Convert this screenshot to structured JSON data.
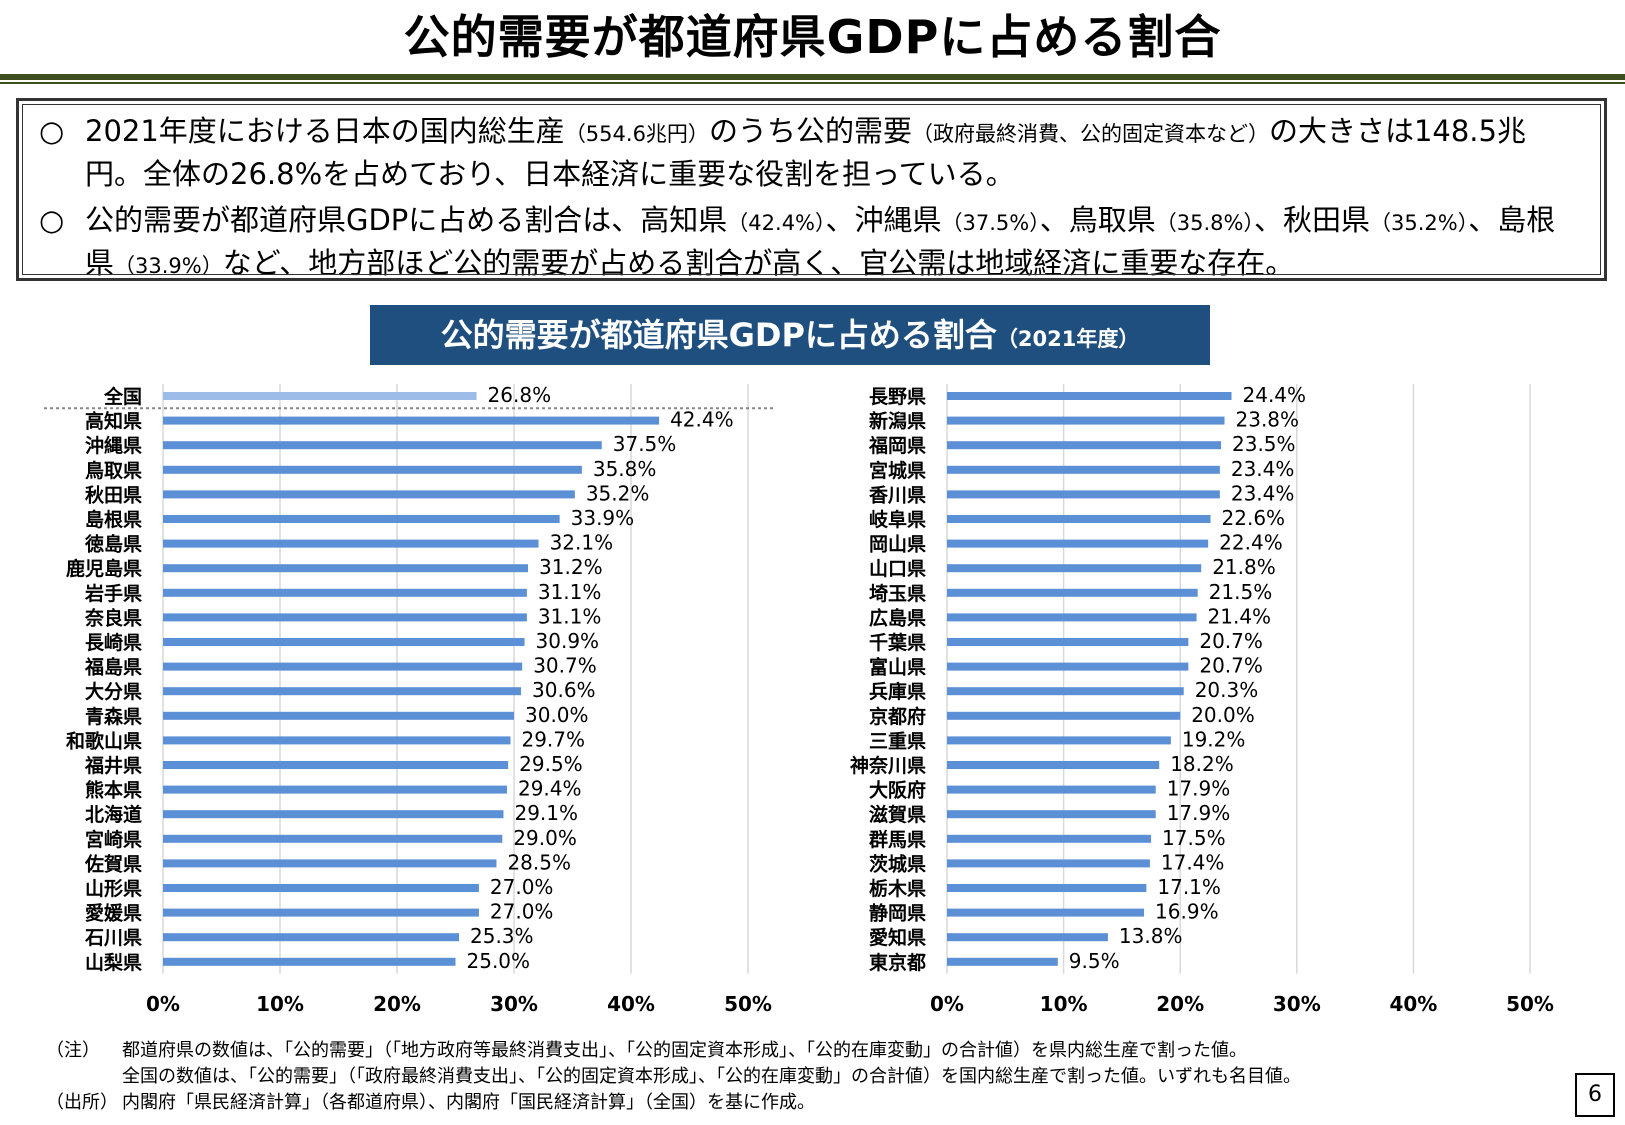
{
  "page": {
    "title": "公的需要が都道府県GDPに占める割合",
    "page_number": "6"
  },
  "summary": {
    "bullet_mark": "○",
    "bullet1": {
      "part1": "2021年度における日本の国内総生産",
      "part2": "（554.6兆円）",
      "part3": "のうち公的需要",
      "part4": "（政府最終消費、公的固定資本など）",
      "part5": "の大きさは148.5兆円。全体の26.8%を占めており、日本経済に重要な役割を担っている。"
    },
    "bullet2": {
      "part1": "公的需要が都道府県GDPに占める割合は、高知県",
      "part2": "（42.4%）",
      "part3": "、沖縄県",
      "part4": "（37.5%）",
      "part5": "、鳥取県",
      "part6": "（35.8%）",
      "part7": "、秋田県",
      "part8": "（35.2%）",
      "part9": "、島根県",
      "part10": "（33.9%）",
      "part11": "など、地方部ほど公的需要が占める割合が高く、官公需は地域経済に重要な存在。"
    }
  },
  "chart_title": {
    "main": "公的需要が都道府県GDPに占める割合",
    "sub": "（2021年度）"
  },
  "colors": {
    "bar": "#5b8fd6",
    "bar_national": "#9dbde8",
    "grid": "#d9d9d9",
    "title_bg": "#1f4f7f",
    "rule": "#3d4f1e"
  },
  "chart_data": [
    {
      "type": "bar",
      "orientation": "horizontal",
      "categories": [
        "全国",
        "高知県",
        "沖縄県",
        "鳥取県",
        "秋田県",
        "島根県",
        "徳島県",
        "鹿児島県",
        "岩手県",
        "奈良県",
        "長崎県",
        "福島県",
        "大分県",
        "青森県",
        "和歌山県",
        "福井県",
        "熊本県",
        "北海道",
        "宮崎県",
        "佐賀県",
        "山形県",
        "愛媛県",
        "石川県",
        "山梨県"
      ],
      "values": [
        26.8,
        42.4,
        37.5,
        35.8,
        35.2,
        33.9,
        32.1,
        31.2,
        31.1,
        31.1,
        30.9,
        30.7,
        30.6,
        30.0,
        29.7,
        29.5,
        29.4,
        29.1,
        29.0,
        28.5,
        27.0,
        27.0,
        25.3,
        25.0
      ],
      "value_labels": [
        "26.8%",
        "42.4%",
        "37.5%",
        "35.8%",
        "35.2%",
        "33.9%",
        "32.1%",
        "31.2%",
        "31.1%",
        "31.1%",
        "30.9%",
        "30.7%",
        "30.6%",
        "30.0%",
        "29.7%",
        "29.5%",
        "29.4%",
        "29.1%",
        "29.0%",
        "28.5%",
        "27.0%",
        "27.0%",
        "25.3%",
        "25.0%"
      ],
      "xlim": [
        0,
        50
      ],
      "xticks": [
        "0%",
        "10%",
        "20%",
        "30%",
        "40%",
        "50%"
      ],
      "grid": true,
      "highlight_first": true
    },
    {
      "type": "bar",
      "orientation": "horizontal",
      "categories": [
        "長野県",
        "新潟県",
        "福岡県",
        "宮城県",
        "香川県",
        "岐阜県",
        "岡山県",
        "山口県",
        "埼玉県",
        "広島県",
        "千葉県",
        "富山県",
        "兵庫県",
        "京都府",
        "三重県",
        "神奈川県",
        "大阪府",
        "滋賀県",
        "群馬県",
        "茨城県",
        "栃木県",
        "静岡県",
        "愛知県",
        "東京都"
      ],
      "values": [
        24.4,
        23.8,
        23.5,
        23.4,
        23.4,
        22.6,
        22.4,
        21.8,
        21.5,
        21.4,
        20.7,
        20.7,
        20.3,
        20.0,
        19.2,
        18.2,
        17.9,
        17.9,
        17.5,
        17.4,
        17.1,
        16.9,
        13.8,
        9.5
      ],
      "value_labels": [
        "24.4%",
        "23.8%",
        "23.5%",
        "23.4%",
        "23.4%",
        "22.6%",
        "22.4%",
        "21.8%",
        "21.5%",
        "21.4%",
        "20.7%",
        "20.7%",
        "20.3%",
        "20.0%",
        "19.2%",
        "18.2%",
        "17.9%",
        "17.9%",
        "17.5%",
        "17.4%",
        "17.1%",
        "16.9%",
        "13.8%",
        "9.5%"
      ],
      "xlim": [
        0,
        50
      ],
      "xticks": [
        "0%",
        "10%",
        "20%",
        "30%",
        "40%",
        "50%"
      ],
      "grid": true,
      "highlight_first": false
    }
  ],
  "notes": {
    "note_key": "（注）",
    "note_line1": "都道府県の数値は、「公的需要」（「地方政府等最終消費支出」、「公的固定資本形成」、「公的在庫変動」の合計値）を県内総生産で割った値。",
    "note_line2": "全国の数値は、「公的需要」（「政府最終消費支出」、「公的固定資本形成」、「公的在庫変動」の合計値）を国内総生産で割った値。いずれも名目値。",
    "source_key": "（出所）",
    "source_text": "内閣府「県民経済計算」（各都道府県）、内閣府「国民経済計算」（全国）を基に作成。"
  }
}
